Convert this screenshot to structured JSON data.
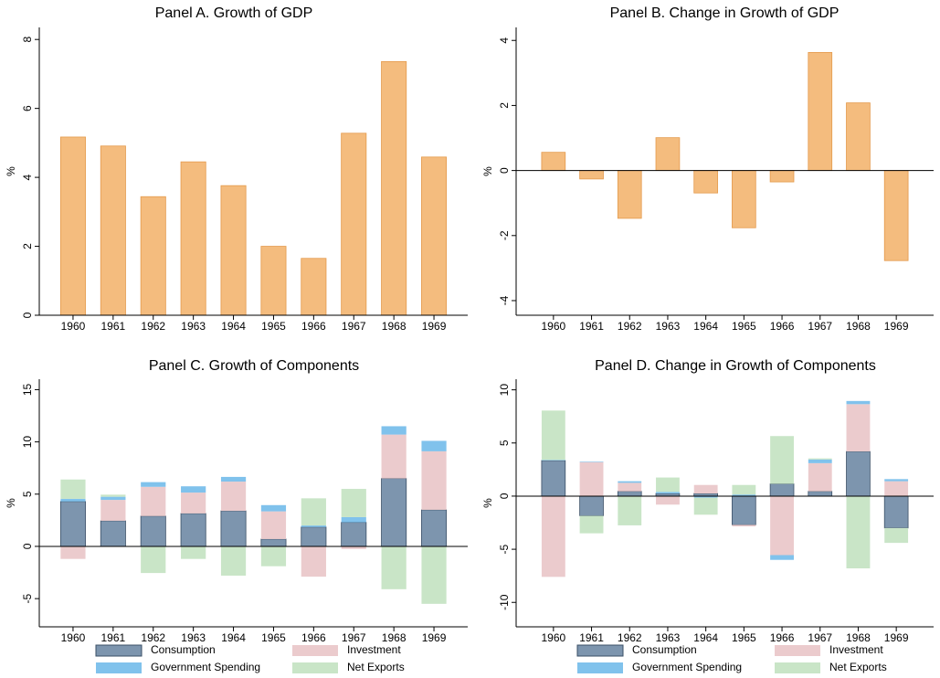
{
  "chart_data": [
    {
      "type": "bar",
      "title": "Panel A. Growth of GDP",
      "ylabel": "%",
      "categories": [
        "1960",
        "1961",
        "1962",
        "1963",
        "1964",
        "1965",
        "1966",
        "1967",
        "1968",
        "1969"
      ],
      "values": [
        5.17,
        4.91,
        3.44,
        4.45,
        3.76,
        2.0,
        1.65,
        5.28,
        7.36,
        4.59
      ],
      "color": "#f4bc7e",
      "edgecolor": "#e49a4c",
      "ylim": [
        0,
        8.35
      ],
      "yticks": [
        0,
        2,
        4,
        6,
        8
      ]
    },
    {
      "type": "bar",
      "title": "Panel B. Change in Growth of GDP",
      "ylabel": "%",
      "categories": [
        "1960",
        "1961",
        "1962",
        "1963",
        "1964",
        "1965",
        "1966",
        "1967",
        "1968",
        "1969"
      ],
      "values": [
        0.56,
        -0.26,
        -1.47,
        1.01,
        -0.69,
        -1.76,
        -0.35,
        3.63,
        2.08,
        -2.77
      ],
      "color": "#f4bc7e",
      "edgecolor": "#e49a4c",
      "ylim": [
        -4.45,
        4.4
      ],
      "yticks": [
        -4,
        -2,
        0,
        2,
        4
      ]
    },
    {
      "type": "stacked_bar",
      "title": "Panel C. Growth of Components",
      "ylabel": "%",
      "categories": [
        "1960",
        "1961",
        "1962",
        "1963",
        "1964",
        "1965",
        "1966",
        "1967",
        "1968",
        "1969"
      ],
      "series": [
        {
          "name": "Consumption",
          "color": "#7d95ae",
          "values": [
            4.3,
            2.45,
            2.9,
            3.15,
            3.4,
            0.7,
            1.85,
            2.3,
            6.5,
            3.5
          ]
        },
        {
          "name": "Investment",
          "color": "#ebcbcd",
          "values": [
            -1.2,
            2.0,
            2.8,
            2.0,
            2.8,
            2.65,
            -2.9,
            -0.25,
            4.2,
            5.6
          ]
        },
        {
          "name": "Government Spending",
          "color": "#80c2ec",
          "values": [
            0.25,
            0.3,
            0.45,
            0.6,
            0.45,
            0.6,
            0.15,
            0.5,
            0.8,
            1.0
          ]
        },
        {
          "name": "Net Exports",
          "color": "#c9e5c7",
          "values": [
            1.85,
            0.2,
            -2.55,
            -1.2,
            -2.8,
            -1.9,
            2.6,
            2.7,
            -4.1,
            -5.5
          ]
        }
      ],
      "ylim": [
        -7.7,
        16
      ],
      "yticks": [
        -5,
        0,
        5,
        10,
        15
      ]
    },
    {
      "type": "stacked_bar",
      "title": "Panel D. Change in Growth of Components",
      "ylabel": "%",
      "categories": [
        "1960",
        "1961",
        "1962",
        "1963",
        "1964",
        "1965",
        "1966",
        "1967",
        "1968",
        "1969"
      ],
      "series": [
        {
          "name": "Consumption",
          "color": "#7d95ae",
          "values": [
            3.35,
            -1.85,
            0.45,
            0.25,
            0.25,
            -2.7,
            1.15,
            0.45,
            4.2,
            -3.0
          ]
        },
        {
          "name": "Investment",
          "color": "#ebcbcd",
          "values": [
            -7.6,
            3.2,
            0.8,
            -0.8,
            0.8,
            -0.15,
            -5.55,
            2.65,
            4.45,
            1.4
          ]
        },
        {
          "name": "Government Spending",
          "color": "#80c2ec",
          "values": [
            0.05,
            0.05,
            0.15,
            0.15,
            -0.15,
            0.15,
            -0.45,
            0.35,
            0.3,
            0.2
          ]
        },
        {
          "name": "Net Exports",
          "color": "#c9e5c7",
          "values": [
            4.65,
            -1.65,
            -2.75,
            1.35,
            -1.6,
            0.9,
            4.5,
            0.1,
            -6.8,
            -1.4
          ]
        }
      ],
      "ylim": [
        -12.3,
        11
      ],
      "yticks": [
        -10,
        -5,
        0,
        5,
        10
      ]
    }
  ]
}
